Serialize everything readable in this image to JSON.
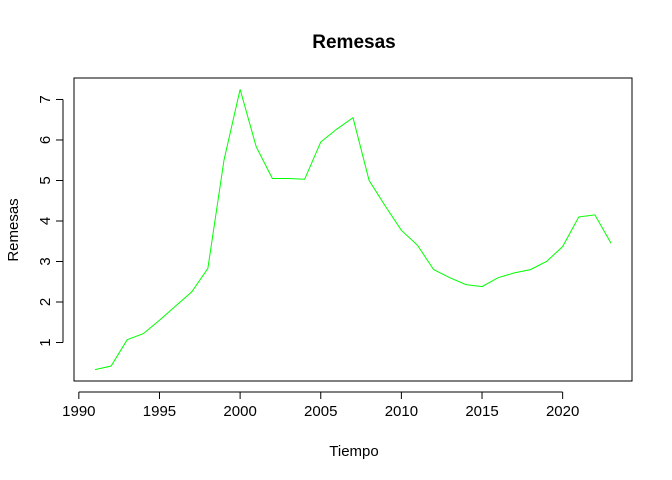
{
  "chart_data": {
    "type": "line",
    "title": "Remesas",
    "xlabel": "Tiempo",
    "ylabel": "Remesas",
    "x": [
      1991,
      1992,
      1993,
      1994,
      1995,
      1996,
      1997,
      1998,
      1999,
      2000,
      2001,
      2002,
      2003,
      2004,
      2005,
      2006,
      2007,
      2008,
      2009,
      2010,
      2011,
      2012,
      2013,
      2014,
      2015,
      2016,
      2017,
      2018,
      2019,
      2020,
      2021,
      2022,
      2023
    ],
    "series": [
      {
        "color": "#00ff00",
        "values": [
          0.33,
          0.42,
          1.07,
          1.22,
          1.55,
          1.9,
          2.25,
          2.83,
          5.5,
          7.25,
          5.83,
          5.05,
          5.05,
          5.03,
          5.95,
          6.27,
          6.55,
          5.0,
          4.37,
          3.77,
          3.4,
          2.8,
          2.6,
          2.43,
          2.38,
          2.6,
          2.72,
          2.8,
          3.0,
          3.37,
          4.1,
          4.15,
          3.45
        ]
      }
    ],
    "xticks": [
      "1990",
      "1995",
      "2000",
      "2005",
      "2010",
      "2015",
      "2020"
    ],
    "yticks": [
      "1",
      "2",
      "3",
      "4",
      "5",
      "6",
      "7"
    ],
    "xlim": [
      1989.7,
      2024.3
    ],
    "ylim": [
      0.05,
      7.53
    ]
  }
}
